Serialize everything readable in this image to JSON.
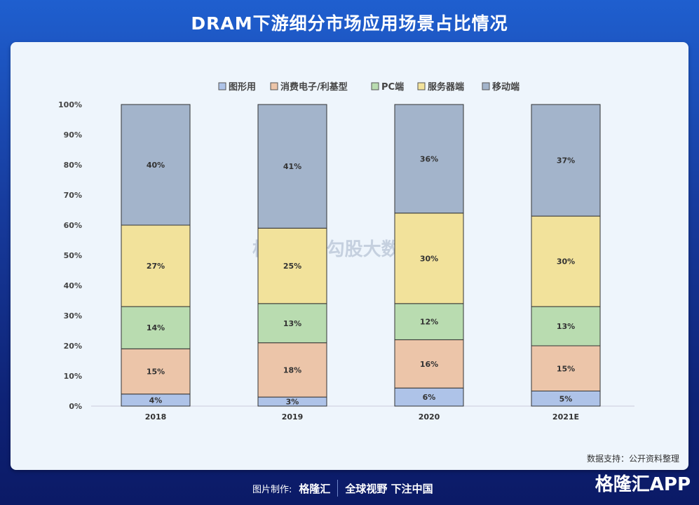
{
  "title": "DRAM下游细分市场应用场景占比情况",
  "source": "数据支持：公开资料整理",
  "footer": {
    "made_by": "图片制作:",
    "logo": "格隆汇",
    "slogan": "全球视野 下注中国",
    "app": "格隆汇APP"
  },
  "watermark": "格隆汇 | 勾股大数据",
  "chart_data": {
    "type": "bar",
    "stacked": true,
    "categories": [
      "2018",
      "2019",
      "2020",
      "2021E"
    ],
    "series": [
      {
        "name": "图形用",
        "color": "#aec3e8",
        "values": [
          4,
          3,
          6,
          5
        ]
      },
      {
        "name": "消费电子/利基型",
        "color": "#ecc5a9",
        "values": [
          15,
          18,
          16,
          15
        ]
      },
      {
        "name": "PC端",
        "color": "#b9dcb0",
        "values": [
          14,
          13,
          12,
          13
        ]
      },
      {
        "name": "服务器端",
        "color": "#f2e29b",
        "values": [
          27,
          25,
          30,
          30
        ]
      },
      {
        "name": "移动端",
        "color": "#a3b4cb",
        "values": [
          40,
          41,
          36,
          37
        ]
      }
    ],
    "data_labels": [
      [
        "4%",
        "3%",
        "6%",
        "5%"
      ],
      [
        "15%",
        "18%",
        "16%",
        "15%"
      ],
      [
        "14%",
        "13%",
        "12%",
        "13%"
      ],
      [
        "27%",
        "25%",
        "30%",
        "30%"
      ],
      [
        "40%",
        "41%",
        "36%",
        "37%"
      ]
    ],
    "yticks": [
      "0%",
      "10%",
      "20%",
      "30%",
      "40%",
      "50%",
      "60%",
      "70%",
      "80%",
      "90%",
      "100%"
    ],
    "ylim": [
      0,
      100
    ],
    "legend": "top",
    "grid": false
  }
}
